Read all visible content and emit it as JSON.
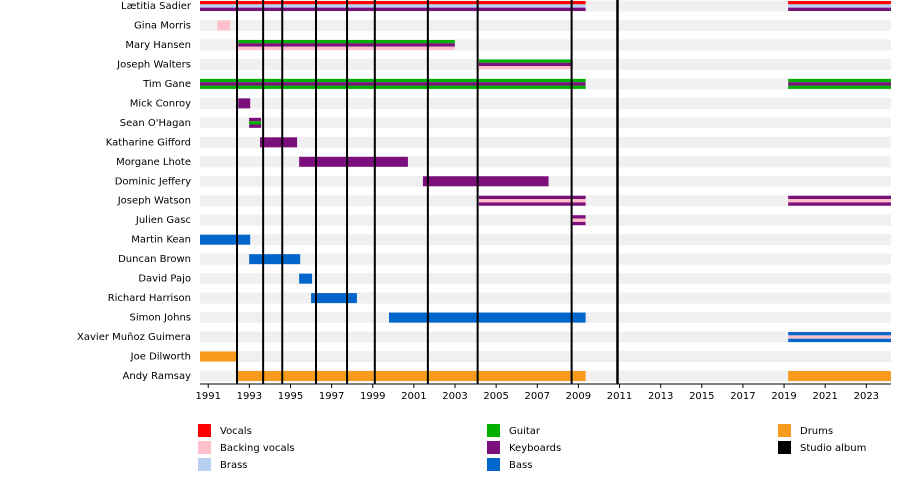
{
  "chart_data": {
    "type": "timeline",
    "xlim": [
      1990.6,
      2024.2
    ],
    "xticks": [
      1991,
      1993,
      1995,
      1997,
      1999,
      2001,
      2003,
      2005,
      2007,
      2009,
      2011,
      2013,
      2015,
      2017,
      2019,
      2021,
      2023
    ],
    "roles": [
      {
        "name": "Vocals",
        "color": "#ff0000"
      },
      {
        "name": "Backing vocals",
        "color": "#ffc0cb"
      },
      {
        "name": "Brass",
        "color": "#b9d0f5"
      },
      {
        "name": "Guitar",
        "color": "#00b000"
      },
      {
        "name": "Keyboards",
        "color": "#7b0f7b"
      },
      {
        "name": "Bass",
        "color": "#0066cc"
      },
      {
        "name": "Drums",
        "color": "#f89a1e"
      },
      {
        "name": "Studio album",
        "color": "#000000"
      }
    ],
    "albums": [
      1992.4,
      1993.67,
      1994.6,
      1996.24,
      1997.75,
      1999.1,
      2001.68,
      2004.1,
      2008.67,
      2010.9
    ],
    "members": [
      {
        "name": "Lætitia Sadier",
        "periods": [
          {
            "start": 1990.6,
            "end": 2009.35,
            "roles": [
              "Vocals",
              "Brass",
              "Keyboards"
            ]
          },
          {
            "start": 2019.2,
            "end": 2024.2,
            "roles": [
              "Vocals",
              "Brass",
              "Keyboards"
            ]
          }
        ]
      },
      {
        "name": "Gina Morris",
        "periods": [
          {
            "start": 1991.44,
            "end": 1992.07,
            "roles": [
              "Backing vocals"
            ]
          }
        ]
      },
      {
        "name": "Mary Hansen",
        "periods": [
          {
            "start": 1992.46,
            "end": 2002.99,
            "roles": [
              "Guitar",
              "Keyboards",
              "Backing vocals"
            ]
          }
        ]
      },
      {
        "name": "Joseph Walters",
        "periods": [
          {
            "start": 2004.16,
            "end": 2008.72,
            "roles": [
              "Guitar",
              "Keyboards",
              "Backing vocals"
            ]
          }
        ]
      },
      {
        "name": "Tim Gane",
        "periods": [
          {
            "start": 1990.6,
            "end": 2009.35,
            "roles": [
              "Guitar",
              "Keyboards",
              "Guitar"
            ]
          },
          {
            "start": 2019.2,
            "end": 2024.2,
            "roles": [
              "Guitar",
              "Keyboards",
              "Guitar"
            ]
          }
        ]
      },
      {
        "name": "Mick Conroy",
        "periods": [
          {
            "start": 1992.46,
            "end": 1993.04,
            "roles": [
              "Keyboards"
            ]
          }
        ]
      },
      {
        "name": "Sean O'Hagan",
        "periods": [
          {
            "start": 1992.99,
            "end": 1993.57,
            "roles": [
              "Keyboards",
              "Guitar",
              "Keyboards"
            ]
          }
        ]
      },
      {
        "name": "Katharine Gifford",
        "periods": [
          {
            "start": 1993.52,
            "end": 1995.32,
            "roles": [
              "Keyboards"
            ]
          }
        ]
      },
      {
        "name": "Morgane Lhote",
        "periods": [
          {
            "start": 1995.42,
            "end": 2000.71,
            "roles": [
              "Keyboards"
            ]
          }
        ]
      },
      {
        "name": "Dominic Jeffery",
        "periods": [
          {
            "start": 2001.44,
            "end": 2007.55,
            "roles": [
              "Keyboards"
            ]
          }
        ]
      },
      {
        "name": "Joseph Watson",
        "periods": [
          {
            "start": 2004.16,
            "end": 2009.35,
            "roles": [
              "Keyboards",
              "Backing vocals",
              "Keyboards"
            ]
          },
          {
            "start": 2019.2,
            "end": 2024.2,
            "roles": [
              "Keyboards",
              "Backing vocals",
              "Keyboards"
            ]
          }
        ]
      },
      {
        "name": "Julien Gasc",
        "periods": [
          {
            "start": 2008.72,
            "end": 2009.35,
            "roles": [
              "Keyboards",
              "Backing vocals",
              "Keyboards"
            ]
          }
        ]
      },
      {
        "name": "Martin Kean",
        "periods": [
          {
            "start": 1990.6,
            "end": 1993.04,
            "roles": [
              "Bass"
            ]
          }
        ]
      },
      {
        "name": "Duncan Brown",
        "periods": [
          {
            "start": 1992.99,
            "end": 1995.47,
            "roles": [
              "Bass"
            ]
          }
        ]
      },
      {
        "name": "David Pajo",
        "periods": [
          {
            "start": 1995.42,
            "end": 1996.05,
            "roles": [
              "Bass"
            ]
          }
        ]
      },
      {
        "name": "Richard Harrison",
        "periods": [
          {
            "start": 1996.0,
            "end": 1998.23,
            "roles": [
              "Bass"
            ]
          }
        ]
      },
      {
        "name": "Simon Johns",
        "periods": [
          {
            "start": 1999.79,
            "end": 2009.35,
            "roles": [
              "Bass"
            ]
          }
        ]
      },
      {
        "name": "Xavier Muñoz Guimera",
        "periods": [
          {
            "start": 2019.2,
            "end": 2024.2,
            "roles": [
              "Bass",
              "Backing vocals",
              "Bass"
            ]
          }
        ]
      },
      {
        "name": "Joe Dilworth",
        "periods": [
          {
            "start": 1990.6,
            "end": 1992.41,
            "roles": [
              "Drums"
            ]
          }
        ]
      },
      {
        "name": "Andy Ramsay",
        "periods": [
          {
            "start": 1992.41,
            "end": 2009.35,
            "roles": [
              "Drums"
            ]
          },
          {
            "start": 2019.2,
            "end": 2024.2,
            "roles": [
              "Drums"
            ]
          }
        ]
      }
    ]
  }
}
